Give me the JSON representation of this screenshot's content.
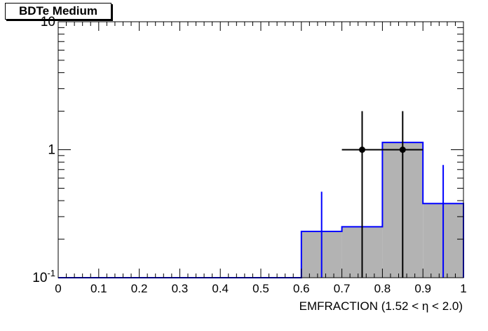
{
  "chart_data": {
    "type": "histogram",
    "title": "BDTe Medium",
    "xlabel": "EMFRACTION (1.52 <   η < 2.0)",
    "ylabel": "",
    "xlim": [
      0,
      1
    ],
    "ylim": [
      0.1,
      10
    ],
    "yscale": "log",
    "x_ticks": [
      "0",
      "0.1",
      "0.2",
      "0.3",
      "0.4",
      "0.5",
      "0.6",
      "0.7",
      "0.8",
      "0.9",
      "1"
    ],
    "y_ticks": [
      {
        "value": 0.1,
        "base": "10",
        "exp": "-1"
      },
      {
        "value": 1,
        "base": "1",
        "exp": ""
      },
      {
        "value": 10,
        "base": "10",
        "exp": ""
      }
    ],
    "grid": false,
    "series": [
      {
        "kind": "filled-histogram",
        "color": "#0000ff",
        "fill": "#b3b3b3",
        "bins": [
          {
            "x0": 0.0,
            "x1": 0.6,
            "y": 0.1
          },
          {
            "x0": 0.6,
            "x1": 0.7,
            "y": 0.23,
            "err_x": 0.65,
            "err_up": 0.47
          },
          {
            "x0": 0.7,
            "x1": 0.8,
            "y": 0.25
          },
          {
            "x0": 0.8,
            "x1": 0.9,
            "y": 1.14
          },
          {
            "x0": 0.9,
            "x1": 1.0,
            "y": 0.38,
            "err_x": 0.95,
            "err_up": 0.76
          }
        ]
      },
      {
        "kind": "data-points",
        "color": "#000000",
        "points": [
          {
            "x": 0.75,
            "y": 1,
            "xerr": 0.05,
            "yerr_up": 2
          },
          {
            "x": 0.85,
            "y": 1,
            "xerr": 0.05,
            "yerr_up": 2
          }
        ]
      }
    ]
  }
}
